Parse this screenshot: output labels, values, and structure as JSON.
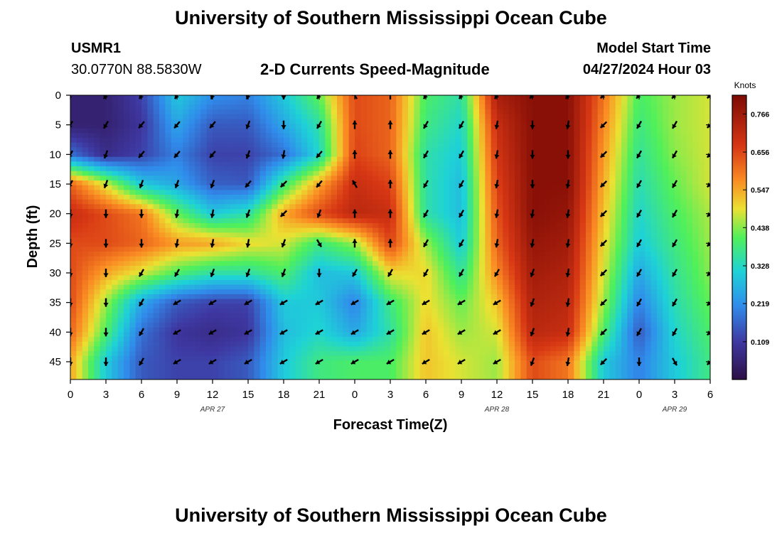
{
  "header": {
    "title": "University of Southern Mississippi Ocean Cube",
    "station_id": "USMR1",
    "coordinates": "30.0770N  88.5830W",
    "plot_title": "2-D Currents Speed-Magnitude",
    "model_start_label": "Model Start Time",
    "model_start_value": "04/27/2024 Hour 03"
  },
  "footer": {
    "title": "University of Southern Mississippi Ocean Cube"
  },
  "chart_data": {
    "type": "heatmap",
    "title": "2-D Currents Speed-Magnitude",
    "xlabel": "Forecast Time(Z)",
    "ylabel": "Depth (ft)",
    "x_hours": [
      0,
      3,
      6,
      9,
      12,
      15,
      18,
      21,
      24,
      27,
      30,
      33,
      36,
      39,
      42,
      45,
      48,
      51,
      54
    ],
    "x_tick_labels": [
      "0",
      "3",
      "6",
      "9",
      "12",
      "15",
      "18",
      "21",
      "0",
      "3",
      "6",
      "9",
      "12",
      "15",
      "18",
      "21",
      "0",
      "3",
      "6"
    ],
    "date_labels": [
      {
        "label": "APR 27",
        "hour": 12
      },
      {
        "label": "APR 28",
        "hour": 36
      },
      {
        "label": "APR 29",
        "hour": 51
      }
    ],
    "y_depths": [
      0,
      5,
      10,
      15,
      20,
      25,
      30,
      35,
      40,
      45
    ],
    "y_tick_labels": [
      "0",
      "5",
      "10",
      "15",
      "20",
      "25",
      "30",
      "35",
      "40",
      "45"
    ],
    "ylim": [
      0,
      48
    ],
    "xlim": [
      0,
      54
    ],
    "colorbar": {
      "label": "Knots",
      "ticks": [
        "0.109",
        "0.219",
        "0.328",
        "0.438",
        "0.547",
        "0.656",
        "0.766"
      ],
      "range": [
        0.0,
        0.82
      ]
    },
    "speed_knots": [
      [
        0.05,
        0.05,
        0.12,
        0.3,
        0.22,
        0.2,
        0.3,
        0.42,
        0.65,
        0.62,
        0.4,
        0.35,
        0.75,
        0.8,
        0.8,
        0.6,
        0.4,
        0.45,
        0.48
      ],
      [
        0.05,
        0.05,
        0.1,
        0.25,
        0.15,
        0.15,
        0.25,
        0.35,
        0.65,
        0.62,
        0.38,
        0.32,
        0.7,
        0.8,
        0.8,
        0.58,
        0.38,
        0.45,
        0.48
      ],
      [
        0.18,
        0.08,
        0.12,
        0.2,
        0.12,
        0.12,
        0.18,
        0.32,
        0.66,
        0.62,
        0.35,
        0.3,
        0.68,
        0.8,
        0.8,
        0.56,
        0.36,
        0.44,
        0.48
      ],
      [
        0.62,
        0.48,
        0.3,
        0.25,
        0.16,
        0.15,
        0.38,
        0.55,
        0.7,
        0.66,
        0.35,
        0.28,
        0.66,
        0.8,
        0.8,
        0.54,
        0.34,
        0.42,
        0.48
      ],
      [
        0.7,
        0.65,
        0.6,
        0.42,
        0.3,
        0.35,
        0.55,
        0.65,
        0.72,
        0.7,
        0.35,
        0.28,
        0.64,
        0.8,
        0.78,
        0.52,
        0.32,
        0.4,
        0.46
      ],
      [
        0.65,
        0.65,
        0.62,
        0.56,
        0.55,
        0.5,
        0.48,
        0.38,
        0.45,
        0.66,
        0.45,
        0.3,
        0.62,
        0.78,
        0.76,
        0.5,
        0.3,
        0.38,
        0.45
      ],
      [
        0.65,
        0.55,
        0.48,
        0.4,
        0.35,
        0.35,
        0.4,
        0.28,
        0.3,
        0.5,
        0.5,
        0.36,
        0.58,
        0.76,
        0.74,
        0.48,
        0.25,
        0.36,
        0.44
      ],
      [
        0.65,
        0.45,
        0.25,
        0.15,
        0.12,
        0.12,
        0.3,
        0.3,
        0.2,
        0.38,
        0.5,
        0.42,
        0.52,
        0.74,
        0.72,
        0.45,
        0.2,
        0.34,
        0.42
      ],
      [
        0.62,
        0.4,
        0.18,
        0.1,
        0.08,
        0.1,
        0.28,
        0.32,
        0.25,
        0.35,
        0.52,
        0.45,
        0.48,
        0.72,
        0.7,
        0.4,
        0.15,
        0.32,
        0.4
      ],
      [
        0.55,
        0.3,
        0.15,
        0.12,
        0.12,
        0.15,
        0.3,
        0.38,
        0.4,
        0.4,
        0.52,
        0.48,
        0.45,
        0.65,
        0.6,
        0.3,
        0.2,
        0.3,
        0.38
      ]
    ],
    "arrow_angle_deg": [
      [
        135,
        120,
        120,
        120,
        110,
        110,
        90,
        120,
        240,
        270,
        120,
        120,
        120,
        130,
        120,
        135,
        130,
        130,
        135
      ],
      [
        120,
        120,
        130,
        130,
        130,
        110,
        90,
        120,
        270,
        270,
        120,
        120,
        100,
        90,
        100,
        135,
        120,
        120,
        135
      ],
      [
        120,
        110,
        130,
        130,
        130,
        110,
        100,
        130,
        270,
        270,
        120,
        120,
        100,
        90,
        90,
        135,
        120,
        120,
        135
      ],
      [
        120,
        110,
        110,
        110,
        110,
        130,
        135,
        130,
        240,
        270,
        120,
        120,
        100,
        90,
        100,
        135,
        120,
        120,
        135
      ],
      [
        90,
        90,
        90,
        100,
        100,
        110,
        135,
        110,
        270,
        270,
        120,
        120,
        100,
        100,
        100,
        135,
        120,
        120,
        135
      ],
      [
        90,
        90,
        90,
        100,
        100,
        100,
        110,
        60,
        270,
        270,
        120,
        120,
        100,
        100,
        100,
        135,
        120,
        120,
        135
      ],
      [
        90,
        90,
        120,
        120,
        110,
        110,
        110,
        90,
        120,
        120,
        120,
        120,
        120,
        110,
        100,
        135,
        120,
        120,
        135
      ],
      [
        90,
        90,
        120,
        150,
        150,
        150,
        150,
        150,
        150,
        150,
        150,
        150,
        150,
        110,
        100,
        135,
        120,
        120,
        135
      ],
      [
        90,
        90,
        120,
        150,
        150,
        150,
        150,
        150,
        150,
        150,
        150,
        150,
        150,
        110,
        100,
        135,
        120,
        120,
        135
      ],
      [
        90,
        90,
        120,
        150,
        150,
        150,
        150,
        150,
        150,
        150,
        150,
        150,
        150,
        110,
        100,
        135,
        90,
        60,
        135
      ]
    ]
  }
}
